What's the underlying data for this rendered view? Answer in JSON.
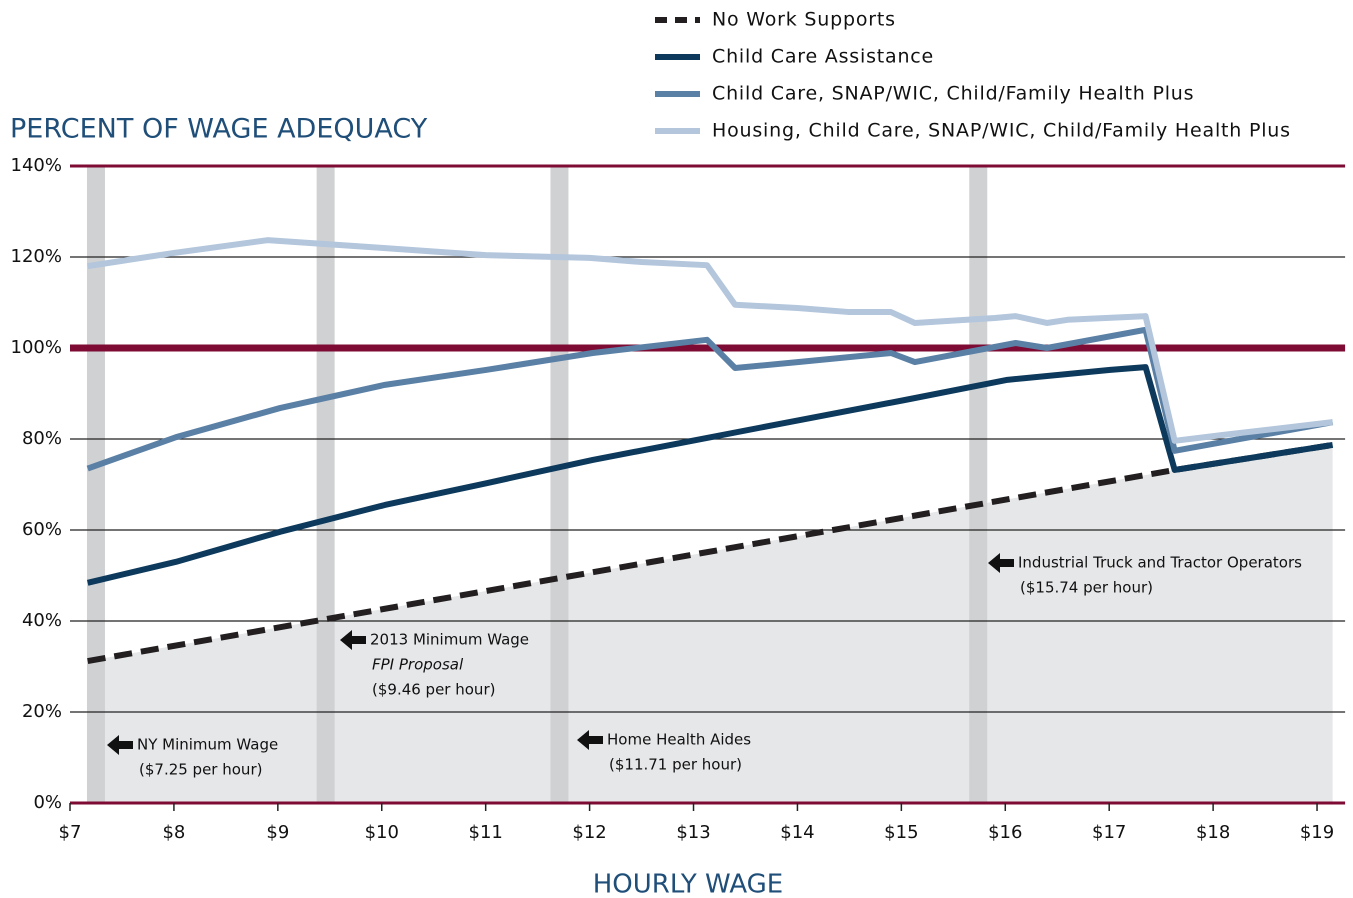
{
  "chart_data": {
    "type": "line",
    "title": "PERCENT OF WAGE ADEQUACY",
    "x_label": "HOURLY WAGE",
    "xlim": [
      7,
      19.27
    ],
    "ylim": [
      0,
      140
    ],
    "xticks": [
      {
        "value": 7,
        "label": "$7"
      },
      {
        "value": 8,
        "label": "$8"
      },
      {
        "value": 9,
        "label": "$9"
      },
      {
        "value": 10,
        "label": "$10"
      },
      {
        "value": 11,
        "label": "$11"
      },
      {
        "value": 12,
        "label": "$12"
      },
      {
        "value": 13,
        "label": "$13"
      },
      {
        "value": 14,
        "label": "$14"
      },
      {
        "value": 15,
        "label": "$15"
      },
      {
        "value": 16,
        "label": "$16"
      },
      {
        "value": 17,
        "label": "$17"
      },
      {
        "value": 18,
        "label": "$18"
      },
      {
        "value": 19,
        "label": "$19"
      }
    ],
    "yticks": [
      {
        "value": 0,
        "label": "0%"
      },
      {
        "value": 20,
        "label": "20%"
      },
      {
        "value": 40,
        "label": "40%"
      },
      {
        "value": 60,
        "label": "60%"
      },
      {
        "value": 80,
        "label": "80%"
      },
      {
        "value": 100,
        "label": "100%"
      },
      {
        "value": 120,
        "label": "120%"
      },
      {
        "value": 140,
        "label": "140%"
      }
    ],
    "grid": true,
    "reference_line": {
      "value": 100,
      "color": "#7d0b33"
    },
    "legend": "top-right",
    "series": [
      {
        "name": "No Work Supports",
        "color": "#231f20",
        "line_style": "dashed",
        "fill": "#e6e7e9",
        "x": [
          7.17,
          17.63,
          19.15
        ],
        "values": [
          31.2,
          73.2,
          78.7
        ]
      },
      {
        "name": "Child Care Assistance",
        "color": "#0d3a5c",
        "x": [
          7.17,
          8.02,
          9.02,
          10.03,
          11.01,
          12.03,
          13.03,
          14.03,
          15.04,
          16.02,
          17.01,
          17.35,
          17.63,
          19.15
        ],
        "values": [
          48.4,
          53,
          59.6,
          65.5,
          70.3,
          75.4,
          79.8,
          84.2,
          88.6,
          93,
          95.2,
          95.8,
          73.2,
          78.7
        ]
      },
      {
        "name": "Child Care, SNAP/WIC, Child/Family Health Plus",
        "color": "#5b80a5",
        "x": [
          7.17,
          8.02,
          9.02,
          10.03,
          11.01,
          12.03,
          13.13,
          13.4,
          14.0,
          14.9,
          15.13,
          16.1,
          16.4,
          17.35,
          17.63,
          19.15
        ],
        "values": [
          73.5,
          80.4,
          86.8,
          91.9,
          95.2,
          98.9,
          101.8,
          95.6,
          96.9,
          98.9,
          96.9,
          101.1,
          100,
          104,
          77.4,
          83.7
        ]
      },
      {
        "name": "Housing, Child Care, SNAP/WIC, Child/Family Health Plus",
        "color": "#b3c6dc",
        "x": [
          7.17,
          8.0,
          8.9,
          10.0,
          11.0,
          12.0,
          12.5,
          13.13,
          13.4,
          14.0,
          14.5,
          14.9,
          15.13,
          15.9,
          16.1,
          16.4,
          16.6,
          17.35,
          17.63,
          18.1,
          19.15
        ],
        "values": [
          118,
          120.9,
          123.7,
          122,
          120.4,
          119.8,
          118.9,
          118.2,
          109.5,
          108.8,
          107.9,
          107.9,
          105.5,
          106.6,
          107,
          105.5,
          106.2,
          107,
          79.6,
          80.9,
          83.7
        ]
      }
    ],
    "annotations": [
      {
        "x": 7.25,
        "text": [
          "NY Minimum Wage",
          "($7.25 per hour)"
        ]
      },
      {
        "x": 9.46,
        "text": [
          "2013 Minimum Wage",
          "FPI Proposal",
          "($9.46 per hour)"
        ]
      },
      {
        "x": 11.71,
        "text": [
          "Home Health Aides",
          "($11.71 per hour)"
        ]
      },
      {
        "x": 15.74,
        "text": [
          "Industrial Truck and Tractor Operators",
          "($15.74 per hour)"
        ]
      }
    ]
  }
}
